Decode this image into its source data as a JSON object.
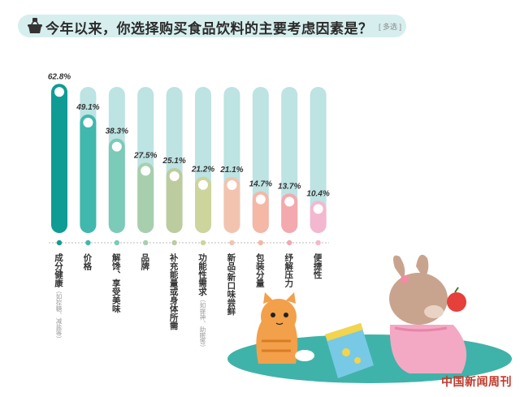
{
  "title": "今年以来，你选择购买食品饮料的主要考虑因素是？",
  "title_note": "[ 多选 ]",
  "watermark": "中国新闻周刊",
  "chart_data": {
    "type": "bar",
    "title": "今年以来，你选择购买食品饮料的主要考虑因素是？",
    "ylim": [
      0,
      70
    ],
    "categories": [
      "成分健康",
      "价格",
      "解馋、享受美味",
      "品牌",
      "补充能量或身体所需",
      "功能性需求",
      "新品/新口味尝鲜",
      "包装分量",
      "纾解压力",
      "便捷性"
    ],
    "category_notes": [
      "（如控糖、减盐等）",
      "",
      "",
      "",
      "",
      "（如提神、助眠等）",
      "",
      "",
      "",
      ""
    ],
    "values": [
      62.8,
      49.1,
      38.3,
      27.5,
      25.1,
      21.2,
      21.1,
      14.7,
      13.7,
      10.4
    ],
    "value_labels": [
      "62.8%",
      "49.1%",
      "38.3%",
      "27.5%",
      "25.1%",
      "21.2%",
      "21.1%",
      "14.7%",
      "13.7%",
      "10.4%"
    ],
    "colors": [
      "#0f9c95",
      "#40b8ae",
      "#7ccab8",
      "#a7cfae",
      "#bccc9f",
      "#cdd49c",
      "#f2c4b0",
      "#f5b7a6",
      "#f3a9ad",
      "#f3b8cf"
    ],
    "track_color": "#bde3e3",
    "grid": false
  }
}
